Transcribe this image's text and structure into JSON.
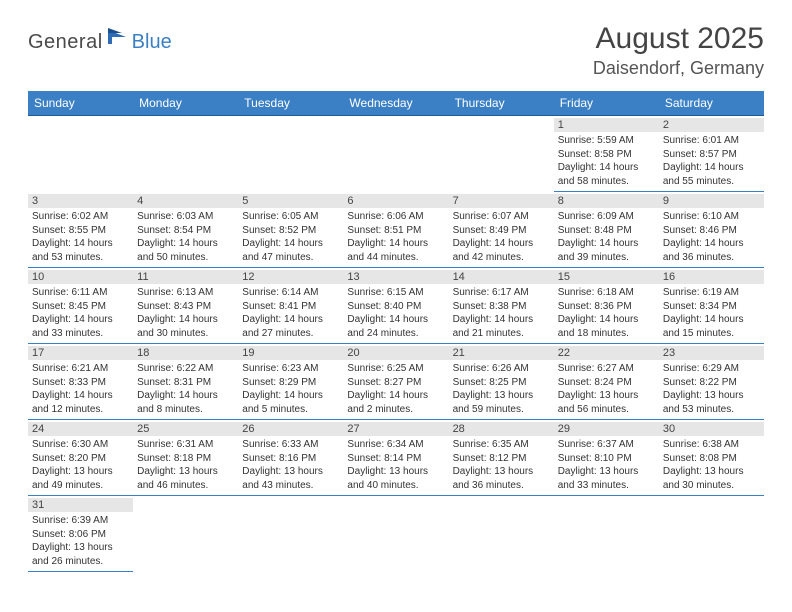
{
  "brand": {
    "text1": "General",
    "text2": "Blue"
  },
  "title": "August 2025",
  "location": "Daisendorf, Germany",
  "colors": {
    "header_bg": "#3b7fc4",
    "header_text": "#ffffff",
    "daynum_bg": "#e6e6e6",
    "cell_border": "#3b7fc4",
    "text": "#333333"
  },
  "weekdays": [
    "Sunday",
    "Monday",
    "Tuesday",
    "Wednesday",
    "Thursday",
    "Friday",
    "Saturday"
  ],
  "weeks": [
    [
      null,
      null,
      null,
      null,
      null,
      {
        "d": "1",
        "sr": "5:59 AM",
        "ss": "8:58 PM",
        "dl": "14 hours and 58 minutes."
      },
      {
        "d": "2",
        "sr": "6:01 AM",
        "ss": "8:57 PM",
        "dl": "14 hours and 55 minutes."
      }
    ],
    [
      {
        "d": "3",
        "sr": "6:02 AM",
        "ss": "8:55 PM",
        "dl": "14 hours and 53 minutes."
      },
      {
        "d": "4",
        "sr": "6:03 AM",
        "ss": "8:54 PM",
        "dl": "14 hours and 50 minutes."
      },
      {
        "d": "5",
        "sr": "6:05 AM",
        "ss": "8:52 PM",
        "dl": "14 hours and 47 minutes."
      },
      {
        "d": "6",
        "sr": "6:06 AM",
        "ss": "8:51 PM",
        "dl": "14 hours and 44 minutes."
      },
      {
        "d": "7",
        "sr": "6:07 AM",
        "ss": "8:49 PM",
        "dl": "14 hours and 42 minutes."
      },
      {
        "d": "8",
        "sr": "6:09 AM",
        "ss": "8:48 PM",
        "dl": "14 hours and 39 minutes."
      },
      {
        "d": "9",
        "sr": "6:10 AM",
        "ss": "8:46 PM",
        "dl": "14 hours and 36 minutes."
      }
    ],
    [
      {
        "d": "10",
        "sr": "6:11 AM",
        "ss": "8:45 PM",
        "dl": "14 hours and 33 minutes."
      },
      {
        "d": "11",
        "sr": "6:13 AM",
        "ss": "8:43 PM",
        "dl": "14 hours and 30 minutes."
      },
      {
        "d": "12",
        "sr": "6:14 AM",
        "ss": "8:41 PM",
        "dl": "14 hours and 27 minutes."
      },
      {
        "d": "13",
        "sr": "6:15 AM",
        "ss": "8:40 PM",
        "dl": "14 hours and 24 minutes."
      },
      {
        "d": "14",
        "sr": "6:17 AM",
        "ss": "8:38 PM",
        "dl": "14 hours and 21 minutes."
      },
      {
        "d": "15",
        "sr": "6:18 AM",
        "ss": "8:36 PM",
        "dl": "14 hours and 18 minutes."
      },
      {
        "d": "16",
        "sr": "6:19 AM",
        "ss": "8:34 PM",
        "dl": "14 hours and 15 minutes."
      }
    ],
    [
      {
        "d": "17",
        "sr": "6:21 AM",
        "ss": "8:33 PM",
        "dl": "14 hours and 12 minutes."
      },
      {
        "d": "18",
        "sr": "6:22 AM",
        "ss": "8:31 PM",
        "dl": "14 hours and 8 minutes."
      },
      {
        "d": "19",
        "sr": "6:23 AM",
        "ss": "8:29 PM",
        "dl": "14 hours and 5 minutes."
      },
      {
        "d": "20",
        "sr": "6:25 AM",
        "ss": "8:27 PM",
        "dl": "14 hours and 2 minutes."
      },
      {
        "d": "21",
        "sr": "6:26 AM",
        "ss": "8:25 PM",
        "dl": "13 hours and 59 minutes."
      },
      {
        "d": "22",
        "sr": "6:27 AM",
        "ss": "8:24 PM",
        "dl": "13 hours and 56 minutes."
      },
      {
        "d": "23",
        "sr": "6:29 AM",
        "ss": "8:22 PM",
        "dl": "13 hours and 53 minutes."
      }
    ],
    [
      {
        "d": "24",
        "sr": "6:30 AM",
        "ss": "8:20 PM",
        "dl": "13 hours and 49 minutes."
      },
      {
        "d": "25",
        "sr": "6:31 AM",
        "ss": "8:18 PM",
        "dl": "13 hours and 46 minutes."
      },
      {
        "d": "26",
        "sr": "6:33 AM",
        "ss": "8:16 PM",
        "dl": "13 hours and 43 minutes."
      },
      {
        "d": "27",
        "sr": "6:34 AM",
        "ss": "8:14 PM",
        "dl": "13 hours and 40 minutes."
      },
      {
        "d": "28",
        "sr": "6:35 AM",
        "ss": "8:12 PM",
        "dl": "13 hours and 36 minutes."
      },
      {
        "d": "29",
        "sr": "6:37 AM",
        "ss": "8:10 PM",
        "dl": "13 hours and 33 minutes."
      },
      {
        "d": "30",
        "sr": "6:38 AM",
        "ss": "8:08 PM",
        "dl": "13 hours and 30 minutes."
      }
    ],
    [
      {
        "d": "31",
        "sr": "6:39 AM",
        "ss": "8:06 PM",
        "dl": "13 hours and 26 minutes."
      },
      null,
      null,
      null,
      null,
      null,
      null
    ]
  ],
  "labels": {
    "sunrise": "Sunrise: ",
    "sunset": "Sunset: ",
    "daylight": "Daylight: "
  }
}
